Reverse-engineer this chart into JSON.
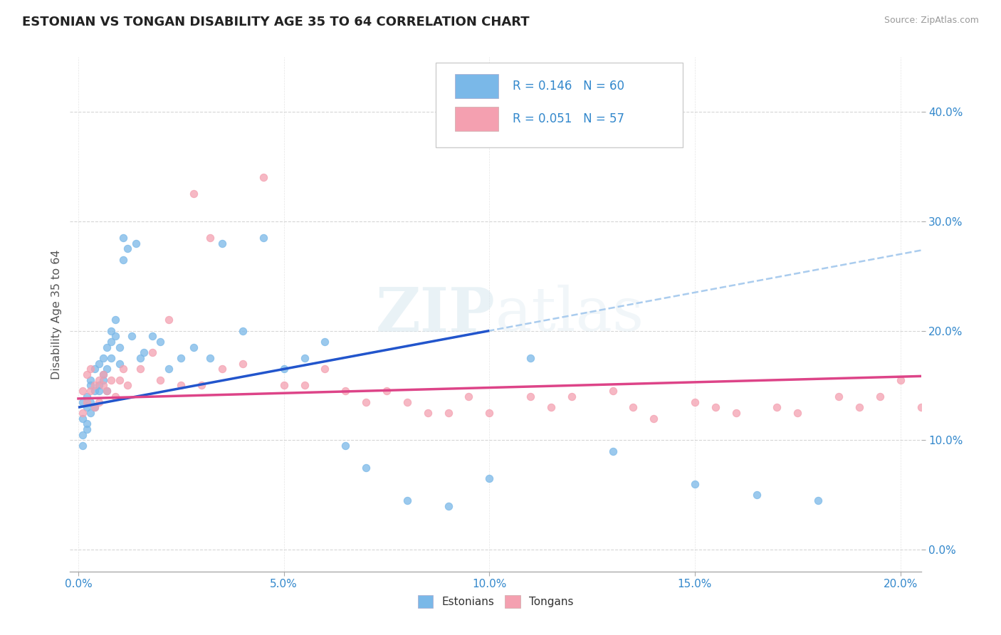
{
  "title": "ESTONIAN VS TONGAN DISABILITY AGE 35 TO 64 CORRELATION CHART",
  "source": "Source: ZipAtlas.com",
  "xlabel_ticks": [
    "0.0%",
    "5.0%",
    "10.0%",
    "15.0%",
    "20.0%"
  ],
  "xlabel_vals": [
    0.0,
    0.05,
    0.1,
    0.15,
    0.2
  ],
  "ylabel_ticks": [
    "0.0%",
    "10.0%",
    "20.0%",
    "30.0%",
    "40.0%"
  ],
  "ylabel_vals": [
    0.0,
    0.1,
    0.2,
    0.3,
    0.4
  ],
  "xlim": [
    -0.002,
    0.205
  ],
  "ylim": [
    -0.02,
    0.45
  ],
  "estonian_color": "#7ab8e8",
  "tongan_color": "#f4a0b0",
  "blue_line_color": "#2255cc",
  "pink_line_color": "#dd4488",
  "dashed_line_color": "#aaccee",
  "R_estonian": 0.146,
  "N_estonian": 60,
  "R_tongan": 0.051,
  "N_tongan": 57,
  "legend_label_estonian": "Estonians",
  "legend_label_tongan": "Tongans",
  "ylabel": "Disability Age 35 to 64",
  "watermark": "ZIPatlas",
  "estonian_x": [
    0.001,
    0.001,
    0.001,
    0.001,
    0.002,
    0.002,
    0.002,
    0.002,
    0.003,
    0.003,
    0.003,
    0.003,
    0.004,
    0.004,
    0.004,
    0.005,
    0.005,
    0.005,
    0.006,
    0.006,
    0.006,
    0.007,
    0.007,
    0.007,
    0.008,
    0.008,
    0.008,
    0.009,
    0.009,
    0.01,
    0.01,
    0.011,
    0.011,
    0.012,
    0.013,
    0.014,
    0.015,
    0.016,
    0.018,
    0.02,
    0.022,
    0.025,
    0.028,
    0.032,
    0.035,
    0.04,
    0.045,
    0.05,
    0.055,
    0.06,
    0.065,
    0.07,
    0.08,
    0.09,
    0.1,
    0.11,
    0.13,
    0.15,
    0.165,
    0.18
  ],
  "estonian_y": [
    0.12,
    0.105,
    0.135,
    0.095,
    0.13,
    0.115,
    0.14,
    0.11,
    0.125,
    0.15,
    0.135,
    0.155,
    0.145,
    0.165,
    0.13,
    0.15,
    0.17,
    0.145,
    0.16,
    0.155,
    0.175,
    0.165,
    0.185,
    0.145,
    0.19,
    0.175,
    0.2,
    0.21,
    0.195,
    0.17,
    0.185,
    0.265,
    0.285,
    0.275,
    0.195,
    0.28,
    0.175,
    0.18,
    0.195,
    0.19,
    0.165,
    0.175,
    0.185,
    0.175,
    0.28,
    0.2,
    0.285,
    0.165,
    0.175,
    0.19,
    0.095,
    0.075,
    0.045,
    0.04,
    0.065,
    0.175,
    0.09,
    0.06,
    0.05,
    0.045
  ],
  "tongan_x": [
    0.001,
    0.001,
    0.002,
    0.002,
    0.003,
    0.003,
    0.004,
    0.004,
    0.005,
    0.005,
    0.006,
    0.006,
    0.007,
    0.008,
    0.009,
    0.01,
    0.011,
    0.012,
    0.015,
    0.018,
    0.02,
    0.022,
    0.025,
    0.028,
    0.03,
    0.032,
    0.035,
    0.04,
    0.045,
    0.05,
    0.055,
    0.06,
    0.065,
    0.07,
    0.075,
    0.08,
    0.085,
    0.09,
    0.095,
    0.1,
    0.11,
    0.115,
    0.12,
    0.13,
    0.135,
    0.14,
    0.15,
    0.155,
    0.16,
    0.17,
    0.175,
    0.185,
    0.19,
    0.195,
    0.2,
    0.205,
    0.21
  ],
  "tongan_y": [
    0.145,
    0.125,
    0.16,
    0.135,
    0.145,
    0.165,
    0.13,
    0.15,
    0.155,
    0.135,
    0.15,
    0.16,
    0.145,
    0.155,
    0.14,
    0.155,
    0.165,
    0.15,
    0.165,
    0.18,
    0.155,
    0.21,
    0.15,
    0.325,
    0.15,
    0.285,
    0.165,
    0.17,
    0.34,
    0.15,
    0.15,
    0.165,
    0.145,
    0.135,
    0.145,
    0.135,
    0.125,
    0.125,
    0.14,
    0.125,
    0.14,
    0.13,
    0.14,
    0.145,
    0.13,
    0.12,
    0.135,
    0.13,
    0.125,
    0.13,
    0.125,
    0.14,
    0.13,
    0.14,
    0.155,
    0.13,
    0.125
  ],
  "blue_line_solid_end": 0.1,
  "dashed_line_start": 0.05
}
